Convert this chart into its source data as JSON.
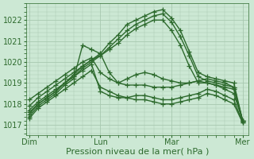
{
  "bg_color": "#cce8d4",
  "grid_color": "#a8c8b0",
  "line_color": "#2d6a2d",
  "marker": "+",
  "markersize": 4,
  "linewidth": 1.0,
  "xlabel": "Pression niveau de la mer( hPa )",
  "xlabel_fontsize": 8,
  "xtick_labels": [
    "Dim",
    "Lun",
    "Mar",
    "Mer"
  ],
  "xtick_positions": [
    0,
    48,
    96,
    144
  ],
  "ytick_labels": [
    "1017",
    "1018",
    "1019",
    "1020",
    "1021",
    "1022"
  ],
  "ylim": [
    1016.5,
    1022.8
  ],
  "xlim": [
    -2,
    148
  ],
  "series": [
    [
      0,
      1017.7,
      6,
      1018.1,
      12,
      1018.4,
      18,
      1018.7,
      24,
      1019.0,
      30,
      1019.4,
      36,
      1019.8,
      42,
      1020.1,
      48,
      1020.4,
      54,
      1020.9,
      60,
      1021.3,
      66,
      1021.8,
      72,
      1022.0,
      78,
      1022.2,
      84,
      1022.4,
      90,
      1022.5,
      96,
      1022.1,
      102,
      1021.5,
      108,
      1020.5,
      114,
      1019.5,
      120,
      1019.3,
      126,
      1019.2,
      132,
      1019.1,
      138,
      1019.0,
      144,
      1017.2
    ],
    [
      0,
      1017.6,
      6,
      1018.0,
      12,
      1018.3,
      18,
      1018.6,
      24,
      1019.0,
      30,
      1019.3,
      36,
      1019.7,
      42,
      1020.0,
      48,
      1020.3,
      54,
      1020.7,
      60,
      1021.1,
      66,
      1021.5,
      72,
      1021.8,
      78,
      1022.0,
      84,
      1022.2,
      90,
      1022.3,
      96,
      1021.9,
      102,
      1021.2,
      108,
      1020.3,
      114,
      1019.3,
      120,
      1019.1,
      126,
      1019.0,
      132,
      1018.9,
      138,
      1018.8,
      144,
      1017.2
    ],
    [
      0,
      1017.4,
      6,
      1017.9,
      12,
      1018.2,
      18,
      1018.5,
      24,
      1018.9,
      30,
      1019.2,
      36,
      1020.8,
      42,
      1020.6,
      48,
      1020.4,
      54,
      1019.5,
      60,
      1019.0,
      66,
      1019.2,
      72,
      1019.4,
      78,
      1019.5,
      84,
      1019.4,
      90,
      1019.2,
      96,
      1019.1,
      102,
      1019.0,
      108,
      1019.0,
      114,
      1019.1,
      120,
      1019.0,
      126,
      1018.9,
      132,
      1018.7,
      138,
      1018.5,
      144,
      1017.2
    ],
    [
      0,
      1017.9,
      6,
      1018.3,
      12,
      1018.6,
      18,
      1018.9,
      24,
      1019.2,
      30,
      1019.5,
      36,
      1019.8,
      42,
      1020.1,
      48,
      1020.3,
      54,
      1020.6,
      60,
      1020.9,
      66,
      1021.3,
      72,
      1021.6,
      78,
      1021.8,
      84,
      1022.0,
      90,
      1022.0,
      96,
      1021.5,
      102,
      1020.8,
      108,
      1019.8,
      114,
      1019.0,
      120,
      1019.0,
      126,
      1018.9,
      132,
      1018.8,
      138,
      1018.7,
      144,
      1017.2
    ],
    [
      0,
      1017.5,
      6,
      1018.0,
      12,
      1018.3,
      18,
      1018.6,
      24,
      1019.0,
      30,
      1019.3,
      36,
      1019.6,
      42,
      1019.9,
      48,
      1018.6,
      54,
      1018.4,
      60,
      1018.3,
      66,
      1018.3,
      72,
      1018.4,
      78,
      1018.4,
      84,
      1018.3,
      90,
      1018.2,
      96,
      1018.2,
      102,
      1018.3,
      108,
      1018.4,
      114,
      1018.5,
      120,
      1018.7,
      126,
      1018.6,
      132,
      1018.4,
      138,
      1018.2,
      144,
      1017.1
    ],
    [
      0,
      1017.3,
      6,
      1017.8,
      12,
      1018.1,
      18,
      1018.4,
      24,
      1018.7,
      30,
      1019.0,
      36,
      1019.3,
      42,
      1019.6,
      48,
      1018.8,
      54,
      1018.6,
      60,
      1018.4,
      66,
      1018.3,
      72,
      1018.2,
      78,
      1018.2,
      84,
      1018.1,
      90,
      1018.0,
      96,
      1018.0,
      102,
      1018.1,
      108,
      1018.2,
      114,
      1018.3,
      120,
      1018.5,
      126,
      1018.4,
      132,
      1018.2,
      138,
      1018.0,
      144,
      1017.1
    ],
    [
      0,
      1018.2,
      6,
      1018.5,
      12,
      1018.8,
      18,
      1019.1,
      24,
      1019.4,
      30,
      1019.7,
      36,
      1020.0,
      42,
      1020.2,
      48,
      1019.5,
      54,
      1019.2,
      60,
      1019.0,
      66,
      1018.9,
      72,
      1018.9,
      78,
      1018.9,
      84,
      1018.8,
      90,
      1018.8,
      96,
      1018.8,
      102,
      1018.9,
      108,
      1019.0,
      114,
      1019.1,
      120,
      1019.2,
      126,
      1019.1,
      132,
      1019.0,
      138,
      1018.8,
      144,
      1017.2
    ]
  ]
}
